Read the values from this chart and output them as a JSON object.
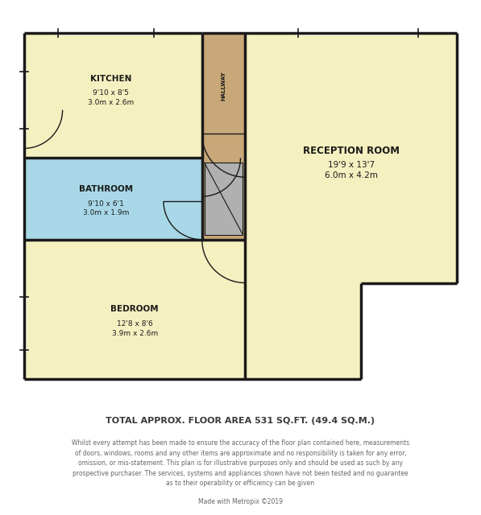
{
  "wall_color": "#1a1a1a",
  "wall_lw": 2.5,
  "kitchen_color": "#f5f0c0",
  "bathroom_color": "#a8d8e8",
  "bedroom_color": "#f5f0c0",
  "reception_color": "#f5f0c0",
  "hallway_color": "#c8a878",
  "stair_color": "#b0b0b0",
  "outer_bg": "#ffffff",
  "footer_title": "TOTAL APPROX. FLOOR AREA 531 SQ.FT. (49.4 SQ.M.)",
  "footer_body": "Whilst every attempt has been made to ensure the accuracy of the floor plan contained here, measurements\nof doors, windows, rooms and any other items are approximate and no responsibility is taken for any error,\nomission, or mis-statement. This plan is for illustrative purposes only and should be used as such by any\nprospective purchaser. The services, systems and appliances shown have not been tested and no guarantee\nas to their operability or efficiency can be given",
  "footer_credit": "Made with Metropix ©2019"
}
